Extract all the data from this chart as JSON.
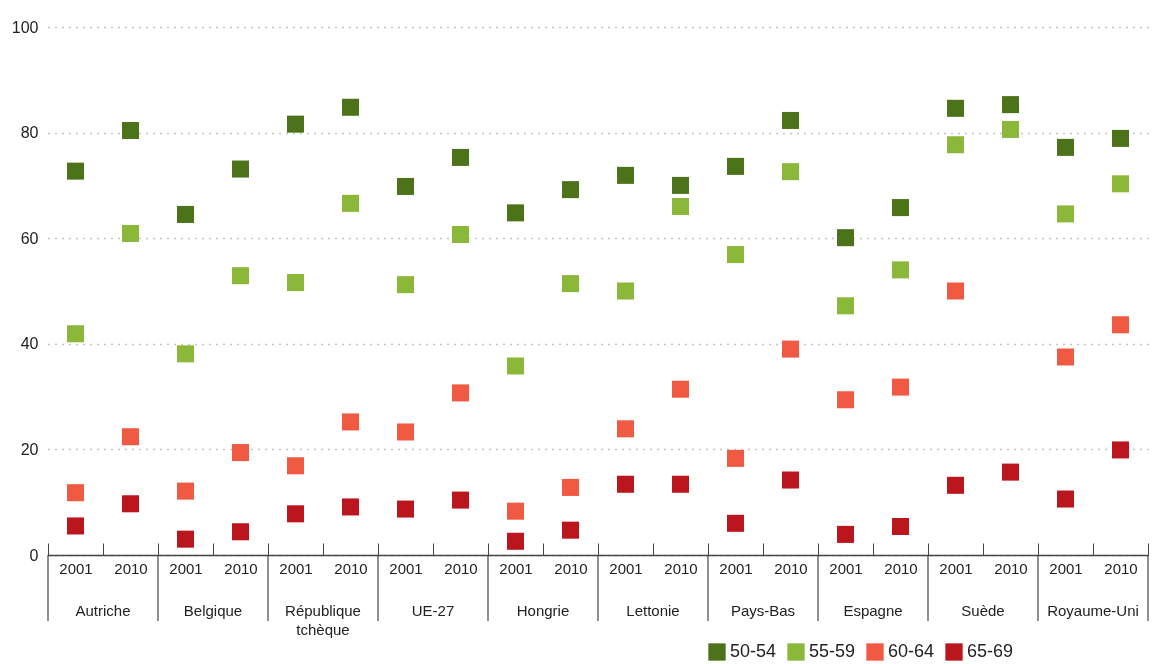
{
  "chart_data": {
    "type": "scatter",
    "categories": [
      "2001",
      "2010",
      "2001",
      "2010",
      "2001",
      "2010",
      "2001",
      "2010",
      "2001",
      "2010",
      "2001",
      "2010",
      "2001",
      "2010",
      "2001",
      "2010",
      "2001",
      "2010",
      "2001",
      "2010"
    ],
    "annotations": [
      "Autriche",
      "Belgique",
      "République tchèque",
      "UE-27",
      "Hongrie",
      "Lettonie",
      "Pays-Bas",
      "Espagne",
      "Suède",
      "Royaume-Uni"
    ],
    "series": [
      {
        "name": "50-54",
        "color": "#4c731a",
        "values": [
          72.7,
          80.4,
          64.5,
          73.1,
          81.6,
          84.8,
          69.8,
          75.3,
          64.8,
          69.2,
          71.9,
          70.0,
          73.6,
          82.3,
          60.1,
          65.8,
          84.6,
          85.3,
          77.2,
          78.9
        ]
      },
      {
        "name": "55-59",
        "color": "#8bb838",
        "values": [
          41.9,
          60.9,
          38.1,
          52.9,
          51.6,
          66.6,
          51.2,
          60.7,
          35.8,
          51.4,
          50.0,
          66.0,
          56.9,
          72.6,
          47.2,
          54.0,
          77.7,
          80.6,
          64.6,
          70.3
        ]
      },
      {
        "name": "60-64",
        "color": "#f05a43",
        "values": [
          11.8,
          22.4,
          12.1,
          19.4,
          16.9,
          25.2,
          23.3,
          30.7,
          8.3,
          12.8,
          23.9,
          31.4,
          18.3,
          39.0,
          29.4,
          31.8,
          50.0,
          null,
          37.5,
          43.6
        ]
      },
      {
        "name": "65-69",
        "color": "#bb151e",
        "values": [
          5.5,
          9.7,
          3.0,
          4.4,
          7.8,
          9.1,
          8.7,
          10.4,
          2.6,
          4.7,
          13.4,
          13.4,
          6.0,
          14.2,
          3.9,
          5.4,
          13.2,
          15.7,
          10.6,
          19.9
        ]
      }
    ],
    "ylim": [
      0,
      100
    ],
    "yticks": [
      0,
      20,
      40,
      60,
      80,
      100
    ],
    "grid": "y",
    "marker": "square",
    "legend": "bottom right"
  }
}
